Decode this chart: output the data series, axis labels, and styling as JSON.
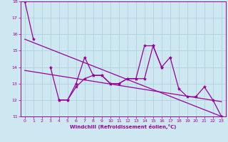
{
  "xlabel": "Windchill (Refroidissement éolien,°C)",
  "background_color": "#cde8f0",
  "grid_color": "#aaccdd",
  "line_color": "#990099",
  "x_values": [
    0,
    1,
    2,
    3,
    4,
    5,
    6,
    7,
    8,
    9,
    10,
    11,
    12,
    13,
    14,
    15,
    16,
    17,
    18,
    19,
    20,
    21,
    22,
    23
  ],
  "line_main": [
    18.0,
    15.7,
    null,
    14.0,
    12.0,
    12.0,
    13.0,
    14.6,
    13.5,
    13.5,
    13.0,
    13.0,
    13.3,
    13.3,
    15.3,
    15.3,
    14.0,
    14.6,
    12.7,
    12.2,
    12.2,
    12.8,
    12.0,
    11.0
  ],
  "line_mid": [
    null,
    null,
    null,
    null,
    12.0,
    12.0,
    12.8,
    13.3,
    13.5,
    13.5,
    13.0,
    13.0,
    13.3,
    13.3,
    13.3,
    15.3,
    14.0,
    null,
    null,
    null,
    null,
    null,
    null,
    null
  ],
  "trend1_x": [
    0,
    23
  ],
  "trend1_y": [
    15.7,
    11.0
  ],
  "trend2_x": [
    0,
    23
  ],
  "trend2_y": [
    13.8,
    11.9
  ],
  "ylim": [
    11,
    18
  ],
  "xlim_min": -0.5,
  "xlim_max": 23.5,
  "yticks": [
    11,
    12,
    13,
    14,
    15,
    16,
    17,
    18
  ],
  "xticks": [
    0,
    1,
    2,
    3,
    4,
    5,
    6,
    7,
    8,
    9,
    10,
    11,
    12,
    13,
    14,
    15,
    16,
    17,
    18,
    19,
    20,
    21,
    22,
    23
  ]
}
